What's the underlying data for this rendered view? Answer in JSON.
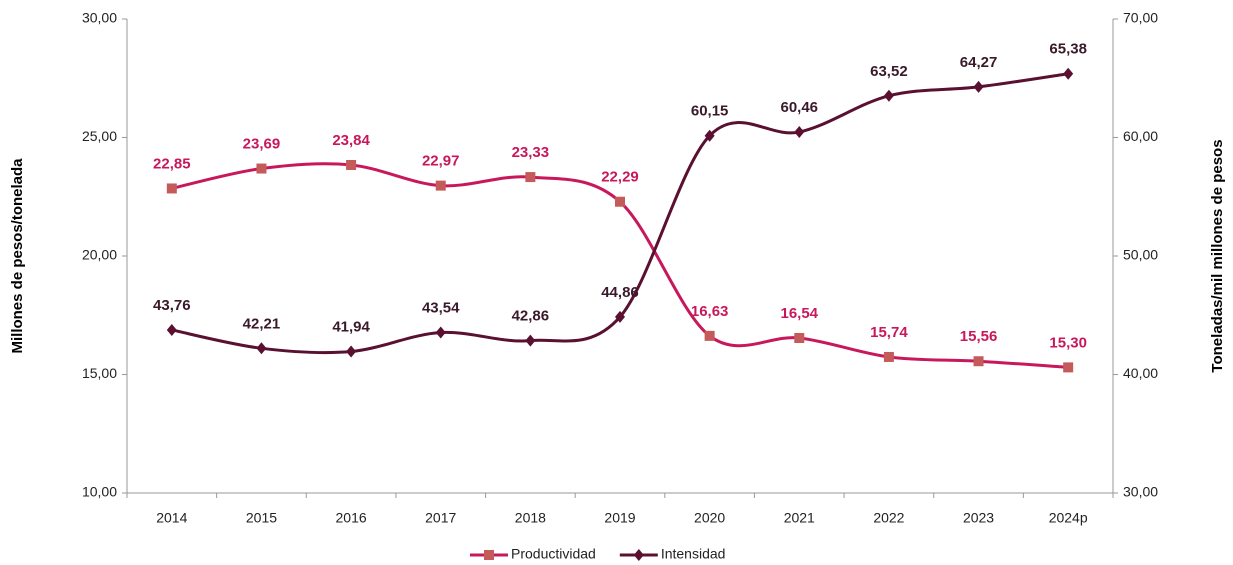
{
  "chart_data": {
    "type": "line",
    "y_label": "Millones de pesos/tonelada",
    "y2_label": "Toneladas/mil millones de pesos",
    "categories": [
      "2014",
      "2015",
      "2016",
      "2017",
      "2018",
      "2019",
      "2020",
      "2021",
      "2022",
      "2023",
      "2024p"
    ],
    "series": [
      {
        "name": "Productividad",
        "color": "#c8185c",
        "marker_color": "#c55a5a",
        "marker": "square",
        "values": [
          22.85,
          23.69,
          23.84,
          22.97,
          23.33,
          22.29,
          16.63,
          16.54,
          15.74,
          15.56,
          15.3
        ],
        "value_labels": [
          "22,85",
          "23,69",
          "23,84",
          "22,97",
          "23,33",
          "22,29",
          "16,63",
          "16,54",
          "15,74",
          "15,56",
          "15,30"
        ]
      },
      {
        "name": "Intensidad",
        "color": "#5a1030",
        "marker_color": "#5a1030",
        "marker": "diamond",
        "axis": "y2",
        "values": [
          43.76,
          42.21,
          41.94,
          43.54,
          42.86,
          44.86,
          60.15,
          60.46,
          63.52,
          64.27,
          65.38
        ],
        "value_labels": [
          "43,76",
          "42,21",
          "41,94",
          "43,54",
          "42,86",
          "44,86",
          "60,15",
          "60,46",
          "63,52",
          "64,27",
          "65,38"
        ]
      }
    ],
    "ylim": [
      10,
      30
    ],
    "yticks": [
      {
        "value": 10,
        "label": "10,00"
      },
      {
        "value": 15,
        "label": "15,00"
      },
      {
        "value": 20,
        "label": "20,00"
      },
      {
        "value": 25,
        "label": "25,00"
      },
      {
        "value": 30,
        "label": "30,00"
      }
    ],
    "y2lim": [
      30,
      70
    ],
    "y2ticks": [
      {
        "value": 30,
        "label": "30,00"
      },
      {
        "value": 40,
        "label": "40,00"
      },
      {
        "value": 50,
        "label": "50,00"
      },
      {
        "value": 60,
        "label": "60,00"
      },
      {
        "value": 70,
        "label": "70,00"
      }
    ],
    "legend": "bottom",
    "smooth": true,
    "grid": false
  }
}
